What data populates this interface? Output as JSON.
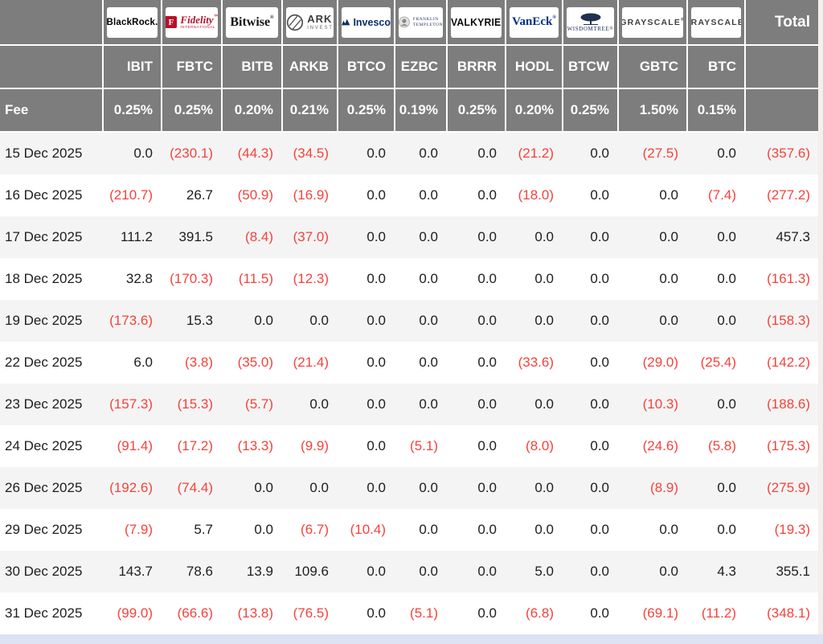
{
  "page": {
    "header_bg": "#7d7d7d",
    "row_alt_bg": "#f4f4f4",
    "negative_color": "#f5423b",
    "positive_color": "#1d1d1f",
    "bottom_strip_color": "#dde3f2",
    "right_gutter_color": "#f2efee"
  },
  "chart_data": {
    "type": "table",
    "fee_row_label": "Fee",
    "total_column_label": "Total",
    "negative_format": "parentheses-red",
    "columns": [
      {
        "provider": "BlackRock",
        "logo_style": "blackrock",
        "logo_text": "BlackRock.",
        "ticker": "IBIT",
        "fee": "0.25%"
      },
      {
        "provider": "Fidelity International",
        "logo_style": "fidelity",
        "logo_badge": "F",
        "logo_text": "Fidelity",
        "logo_sub": "INTERNATIONAL",
        "ticker": "FBTC",
        "fee": "0.25%"
      },
      {
        "provider": "Bitwise",
        "logo_style": "bitwise",
        "logo_text": "Bitwise",
        "ticker": "BITB",
        "fee": "0.20%"
      },
      {
        "provider": "ARK Invest",
        "logo_style": "ark",
        "logo_text": "ARK",
        "logo_sub": "INVEST",
        "ticker": "ARKB",
        "fee": "0.21%"
      },
      {
        "provider": "Invesco",
        "logo_style": "invesco",
        "logo_text": "Invesco",
        "ticker": "BTCO",
        "fee": "0.25%"
      },
      {
        "provider": "Franklin Templeton",
        "logo_style": "franklin",
        "logo_text": "FRANKLIN",
        "logo_sub": "TEMPLETON",
        "ticker": "EZBC",
        "fee": "0.19%"
      },
      {
        "provider": "Valkyrie",
        "logo_style": "valkyrie",
        "logo_text": "VALKYRIE",
        "ticker": "BRRR",
        "fee": "0.25%"
      },
      {
        "provider": "VanEck",
        "logo_style": "vaneck",
        "logo_text": "VanEck",
        "ticker": "HODL",
        "fee": "0.20%"
      },
      {
        "provider": "WisdomTree",
        "logo_style": "wisdomtree",
        "logo_text": "WISDOMTREE",
        "ticker": "BTCW",
        "fee": "0.25%"
      },
      {
        "provider": "Grayscale",
        "logo_style": "grayscale",
        "logo_text": "GRAYSCALE",
        "ticker": "GBTC",
        "fee": "1.50%"
      },
      {
        "provider": "Grayscale",
        "logo_style": "grayscale",
        "logo_text": "GRAYSCALE",
        "ticker": "BTC",
        "fee": "0.15%"
      }
    ],
    "rows": [
      {
        "date": "15 Dec 2025",
        "values": [
          0.0,
          -230.1,
          -44.3,
          -34.5,
          0.0,
          0.0,
          0.0,
          -21.2,
          0.0,
          -27.5,
          0.0
        ],
        "total": -357.6
      },
      {
        "date": "16 Dec 2025",
        "values": [
          -210.7,
          26.7,
          -50.9,
          -16.9,
          0.0,
          0.0,
          0.0,
          -18.0,
          0.0,
          0.0,
          -7.4
        ],
        "total": -277.2
      },
      {
        "date": "17 Dec 2025",
        "values": [
          111.2,
          391.5,
          -8.4,
          -37.0,
          0.0,
          0.0,
          0.0,
          0.0,
          0.0,
          0.0,
          0.0
        ],
        "total": 457.3
      },
      {
        "date": "18 Dec 2025",
        "values": [
          32.8,
          -170.3,
          -11.5,
          -12.3,
          0.0,
          0.0,
          0.0,
          0.0,
          0.0,
          0.0,
          0.0
        ],
        "total": -161.3
      },
      {
        "date": "19 Dec 2025",
        "values": [
          -173.6,
          15.3,
          0.0,
          0.0,
          0.0,
          0.0,
          0.0,
          0.0,
          0.0,
          0.0,
          0.0
        ],
        "total": -158.3
      },
      {
        "date": "22 Dec 2025",
        "values": [
          6.0,
          -3.8,
          -35.0,
          -21.4,
          0.0,
          0.0,
          0.0,
          -33.6,
          0.0,
          -29.0,
          -25.4
        ],
        "total": -142.2
      },
      {
        "date": "23 Dec 2025",
        "values": [
          -157.3,
          -15.3,
          -5.7,
          0.0,
          0.0,
          0.0,
          0.0,
          0.0,
          0.0,
          -10.3,
          0.0
        ],
        "total": -188.6
      },
      {
        "date": "24 Dec 2025",
        "values": [
          -91.4,
          -17.2,
          -13.3,
          -9.9,
          0.0,
          -5.1,
          0.0,
          -8.0,
          0.0,
          -24.6,
          -5.8
        ],
        "total": -175.3
      },
      {
        "date": "26 Dec 2025",
        "values": [
          -192.6,
          -74.4,
          0.0,
          0.0,
          0.0,
          0.0,
          0.0,
          0.0,
          0.0,
          -8.9,
          0.0
        ],
        "total": -275.9
      },
      {
        "date": "29 Dec 2025",
        "values": [
          -7.9,
          5.7,
          0.0,
          -6.7,
          -10.4,
          0.0,
          0.0,
          0.0,
          0.0,
          0.0,
          0.0
        ],
        "total": -19.3
      },
      {
        "date": "30 Dec 2025",
        "values": [
          143.7,
          78.6,
          13.9,
          109.6,
          0.0,
          0.0,
          0.0,
          5.0,
          0.0,
          0.0,
          4.3
        ],
        "total": 355.1
      },
      {
        "date": "31 Dec 2025",
        "values": [
          -99.0,
          -66.6,
          -13.8,
          -76.5,
          0.0,
          -5.1,
          0.0,
          -6.8,
          0.0,
          -69.1,
          -11.2
        ],
        "total": -348.1
      }
    ]
  }
}
